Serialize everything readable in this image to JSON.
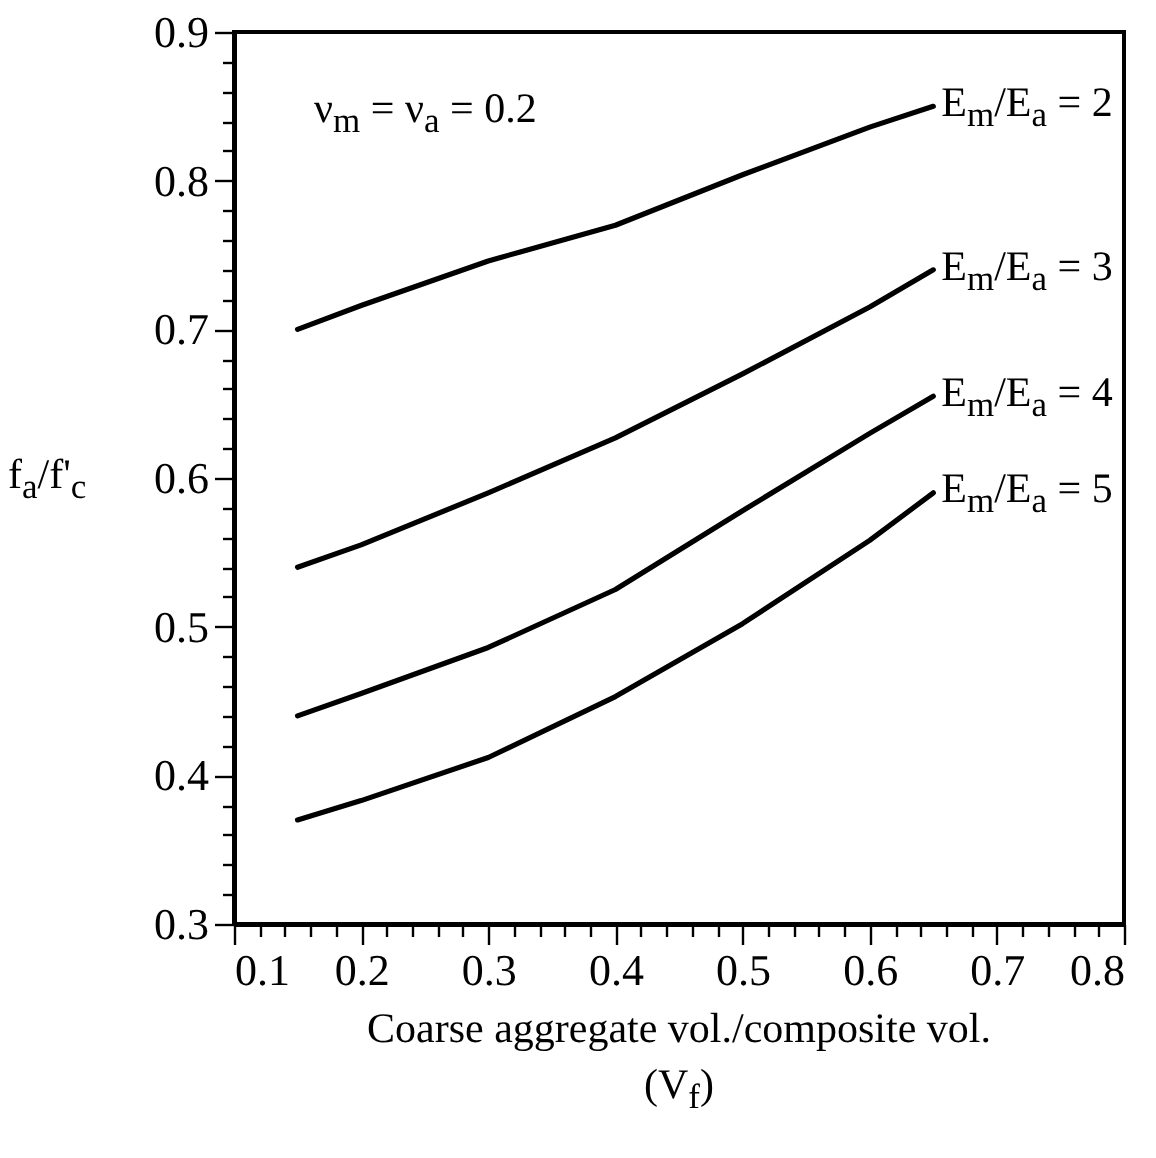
{
  "chart_data": {
    "type": "line",
    "xlabel": "Coarse aggregate vol./composite vol.\n(V$_{f}$)",
    "ylabel": "f$_{a}$/f'$_{c}$",
    "annotations": [
      "ν$_{m}$ = ν$_{a}$ = 0.2"
    ],
    "x": [
      0.15,
      0.2,
      0.3,
      0.4,
      0.5,
      0.6,
      0.65
    ],
    "series": [
      {
        "name": "E$_{m}$/E$_{a}$ = 2",
        "color": "#000000",
        "values": [
          0.7,
          0.716,
          0.746,
          0.77,
          0.804,
          0.836,
          0.85
        ]
      },
      {
        "name": "E$_{m}$/E$_{a}$ = 3",
        "color": "#000000",
        "values": [
          0.54,
          0.555,
          0.59,
          0.627,
          0.67,
          0.715,
          0.74
        ]
      },
      {
        "name": "E$_{m}$/E$_{a}$ = 4",
        "color": "#000000",
        "values": [
          0.44,
          0.455,
          0.486,
          0.525,
          0.578,
          0.63,
          0.655
        ]
      },
      {
        "name": "E$_{m}$/E$_{a}$ = 5",
        "color": "#000000",
        "values": [
          0.37,
          0.383,
          0.412,
          0.453,
          0.502,
          0.558,
          0.59
        ]
      }
    ],
    "xlim": [
      0.1,
      0.8
    ],
    "ylim": [
      0.3,
      0.9
    ],
    "xticks": [
      0.1,
      {
        "value": 0.12,
        "label": null
      },
      {
        "value": 0.14,
        "label": null
      },
      {
        "value": 0.16,
        "label": null
      },
      {
        "value": 0.18,
        "label": null
      },
      0.2,
      {
        "value": 0.22,
        "label": null
      },
      {
        "value": 0.24,
        "label": null
      },
      {
        "value": 0.26,
        "label": null
      },
      {
        "value": 0.28,
        "label": null
      },
      0.3,
      {
        "value": 0.32,
        "label": null
      },
      {
        "value": 0.34,
        "label": null
      },
      {
        "value": 0.36,
        "label": null
      },
      {
        "value": 0.38,
        "label": null
      },
      0.4,
      {
        "value": 0.42,
        "label": null
      },
      {
        "value": 0.44,
        "label": null
      },
      {
        "value": 0.46,
        "label": null
      },
      {
        "value": 0.48,
        "label": null
      },
      0.5,
      {
        "value": 0.52,
        "label": null
      },
      {
        "value": 0.54,
        "label": null
      },
      {
        "value": 0.56,
        "label": null
      },
      {
        "value": 0.58,
        "label": null
      },
      0.6,
      {
        "value": 0.62,
        "label": null
      },
      {
        "value": 0.64,
        "label": null
      },
      {
        "value": 0.66,
        "label": null
      },
      {
        "value": 0.68,
        "label": null
      },
      0.7,
      {
        "value": 0.72,
        "label": null
      },
      {
        "value": 0.74,
        "label": null
      },
      {
        "value": 0.76,
        "label": null
      },
      {
        "value": 0.78,
        "label": null
      },
      0.8
    ],
    "yticks": [
      0.3,
      {
        "value": 0.32,
        "label": null
      },
      {
        "value": 0.34,
        "label": null
      },
      {
        "value": 0.36,
        "label": null
      },
      {
        "value": 0.38,
        "label": null
      },
      0.4,
      {
        "value": 0.42,
        "label": null
      },
      {
        "value": 0.44,
        "label": null
      },
      {
        "value": 0.46,
        "label": null
      },
      {
        "value": 0.48,
        "label": null
      },
      0.5,
      {
        "value": 0.52,
        "label": null
      },
      {
        "value": 0.54,
        "label": null
      },
      {
        "value": 0.56,
        "label": null
      },
      {
        "value": 0.58,
        "label": null
      },
      0.6,
      {
        "value": 0.62,
        "label": null
      },
      {
        "value": 0.64,
        "label": null
      },
      {
        "value": 0.66,
        "label": null
      },
      {
        "value": 0.68,
        "label": null
      },
      0.7,
      {
        "value": 0.72,
        "label": null
      },
      {
        "value": 0.74,
        "label": null
      },
      {
        "value": 0.76,
        "label": null
      },
      {
        "value": 0.78,
        "label": null
      },
      0.8,
      {
        "value": 0.82,
        "label": null
      },
      {
        "value": 0.84,
        "label": null
      },
      {
        "value": 0.86,
        "label": null
      },
      {
        "value": 0.88,
        "label": null
      },
      0.9
    ],
    "grid": false,
    "marker": "none",
    "line_style": "solid"
  }
}
